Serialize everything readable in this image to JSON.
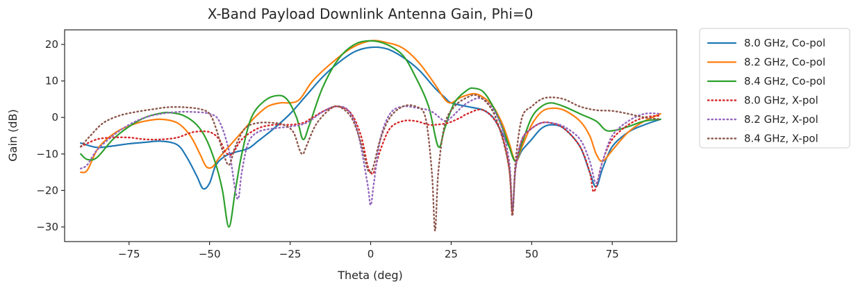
{
  "chart_data": {
    "type": "line",
    "title": "X-Band Payload Downlink Antenna Gain, Phi=0",
    "xlabel": "Theta (deg)",
    "ylabel": "Gain (dB)",
    "xlim": [
      -95,
      95
    ],
    "ylim": [
      -34,
      24
    ],
    "xticks": [
      -75,
      -50,
      -25,
      0,
      25,
      50,
      75
    ],
    "yticks": [
      -30,
      -20,
      -10,
      0,
      10,
      20
    ],
    "xtick_labels": [
      "−75",
      "−50",
      "−25",
      "0",
      "25",
      "50",
      "75"
    ],
    "ytick_labels": [
      "−30",
      "−20",
      "−10",
      "0",
      "10",
      "20"
    ],
    "grid": false,
    "legend_position": "outside-right",
    "series": [
      {
        "name": "8.0 GHz, Co-pol",
        "color": "#1f77b4",
        "dash": "solid",
        "points": [
          [
            -90,
            -7
          ],
          [
            -85,
            -8.2
          ],
          [
            -80,
            -7.8
          ],
          [
            -75,
            -7.2
          ],
          [
            -70,
            -6.8
          ],
          [
            -65,
            -6.5
          ],
          [
            -60,
            -7.5
          ],
          [
            -57,
            -11
          ],
          [
            -54,
            -16
          ],
          [
            -52,
            -19.5
          ],
          [
            -50,
            -18
          ],
          [
            -48,
            -13
          ],
          [
            -45,
            -10.5
          ],
          [
            -42,
            -9.5
          ],
          [
            -38,
            -8.5
          ],
          [
            -35,
            -6.5
          ],
          [
            -30,
            -3
          ],
          [
            -25,
            1
          ],
          [
            -20,
            6
          ],
          [
            -15,
            11
          ],
          [
            -10,
            15
          ],
          [
            -5,
            18
          ],
          [
            0,
            19.2
          ],
          [
            5,
            18.8
          ],
          [
            10,
            16.5
          ],
          [
            15,
            13
          ],
          [
            20,
            8
          ],
          [
            23,
            5.5
          ],
          [
            25,
            4
          ],
          [
            30,
            3
          ],
          [
            35,
            2
          ],
          [
            38,
            0
          ],
          [
            40,
            -3
          ],
          [
            43,
            -8
          ],
          [
            45,
            -12
          ],
          [
            47,
            -9
          ],
          [
            50,
            -6
          ],
          [
            53,
            -3
          ],
          [
            56,
            -2
          ],
          [
            60,
            -3
          ],
          [
            65,
            -8
          ],
          [
            68,
            -15
          ],
          [
            70,
            -19
          ],
          [
            72,
            -14
          ],
          [
            75,
            -8
          ],
          [
            80,
            -4
          ],
          [
            85,
            -2
          ],
          [
            90,
            -0.5
          ]
        ]
      },
      {
        "name": "8.2 GHz, Co-pol",
        "color": "#ff7f0e",
        "dash": "solid",
        "points": [
          [
            -90,
            -15
          ],
          [
            -88,
            -14.5
          ],
          [
            -85,
            -9
          ],
          [
            -82,
            -6
          ],
          [
            -78,
            -3.5
          ],
          [
            -74,
            -2
          ],
          [
            -70,
            -1
          ],
          [
            -65,
            -0.5
          ],
          [
            -60,
            -1.5
          ],
          [
            -56,
            -5
          ],
          [
            -53,
            -10
          ],
          [
            -51,
            -13.5
          ],
          [
            -49,
            -13.5
          ],
          [
            -47,
            -11
          ],
          [
            -44,
            -8
          ],
          [
            -40,
            -4
          ],
          [
            -36,
            0
          ],
          [
            -32,
            3
          ],
          [
            -28,
            4
          ],
          [
            -25,
            4
          ],
          [
            -22,
            5
          ],
          [
            -18,
            10
          ],
          [
            -12,
            15
          ],
          [
            -6,
            19
          ],
          [
            0,
            21
          ],
          [
            5,
            20.5
          ],
          [
            10,
            19
          ],
          [
            15,
            15
          ],
          [
            20,
            9
          ],
          [
            23,
            5
          ],
          [
            25,
            4
          ],
          [
            28,
            5.5
          ],
          [
            32,
            6.5
          ],
          [
            35,
            5.5
          ],
          [
            38,
            3
          ],
          [
            41,
            -2
          ],
          [
            43,
            -7
          ],
          [
            45,
            -12
          ],
          [
            47,
            -8
          ],
          [
            50,
            -2
          ],
          [
            53,
            1.5
          ],
          [
            56,
            2.5
          ],
          [
            60,
            2
          ],
          [
            65,
            -1
          ],
          [
            68,
            -5
          ],
          [
            70,
            -10
          ],
          [
            72,
            -12
          ],
          [
            75,
            -9
          ],
          [
            80,
            -4
          ],
          [
            85,
            -1
          ],
          [
            90,
            1
          ]
        ]
      },
      {
        "name": "8.4 GHz, Co-pol",
        "color": "#2ca02c",
        "dash": "solid",
        "points": [
          [
            -90,
            -10
          ],
          [
            -88,
            -11.5
          ],
          [
            -85,
            -11
          ],
          [
            -80,
            -6
          ],
          [
            -75,
            -2.5
          ],
          [
            -70,
            0
          ],
          [
            -65,
            1.2
          ],
          [
            -62,
            1.3
          ],
          [
            -58,
            0.5
          ],
          [
            -54,
            -2
          ],
          [
            -51,
            -6
          ],
          [
            -48,
            -13
          ],
          [
            -46,
            -20
          ],
          [
            -44,
            -30
          ],
          [
            -42,
            -20
          ],
          [
            -40,
            -10
          ],
          [
            -37,
            0
          ],
          [
            -33,
            4.5
          ],
          [
            -29,
            6
          ],
          [
            -26,
            5
          ],
          [
            -23,
            0
          ],
          [
            -21,
            -6
          ],
          [
            -19,
            -2
          ],
          [
            -15,
            8
          ],
          [
            -10,
            16
          ],
          [
            -5,
            20
          ],
          [
            0,
            21
          ],
          [
            5,
            20
          ],
          [
            10,
            17
          ],
          [
            14,
            11
          ],
          [
            18,
            3
          ],
          [
            21,
            -8
          ],
          [
            23,
            -3
          ],
          [
            26,
            4
          ],
          [
            30,
            7.5
          ],
          [
            32,
            8
          ],
          [
            35,
            7
          ],
          [
            38,
            3
          ],
          [
            41,
            -3
          ],
          [
            43,
            -8
          ],
          [
            45,
            -12
          ],
          [
            47,
            -7
          ],
          [
            50,
            0
          ],
          [
            53,
            3
          ],
          [
            56,
            4
          ],
          [
            60,
            3
          ],
          [
            65,
            1
          ],
          [
            70,
            -1
          ],
          [
            73,
            -3.5
          ],
          [
            76,
            -3.5
          ],
          [
            80,
            -2.5
          ],
          [
            85,
            -1
          ],
          [
            90,
            -0.5
          ]
        ]
      },
      {
        "name": "8.0 GHz, X-pol",
        "color": "#d62728",
        "dash": "dotted",
        "points": [
          [
            -90,
            -8
          ],
          [
            -85,
            -6
          ],
          [
            -80,
            -5.5
          ],
          [
            -75,
            -5.5
          ],
          [
            -70,
            -6
          ],
          [
            -65,
            -6
          ],
          [
            -60,
            -5.5
          ],
          [
            -55,
            -4
          ],
          [
            -50,
            -4
          ],
          [
            -47,
            -6
          ],
          [
            -45,
            -9.5
          ],
          [
            -43,
            -10
          ],
          [
            -40,
            -6
          ],
          [
            -35,
            -3
          ],
          [
            -30,
            -2
          ],
          [
            -25,
            -2
          ],
          [
            -21,
            -1.5
          ],
          [
            -18,
            0
          ],
          [
            -14,
            2
          ],
          [
            -10,
            3
          ],
          [
            -6,
            1
          ],
          [
            -3,
            -5
          ],
          [
            -1,
            -13
          ],
          [
            0,
            -15
          ],
          [
            1,
            -15
          ],
          [
            3,
            -9
          ],
          [
            6,
            -3
          ],
          [
            10,
            -1
          ],
          [
            14,
            -1
          ],
          [
            18,
            -2
          ],
          [
            20,
            -2
          ],
          [
            24,
            -1.5
          ],
          [
            28,
            0
          ],
          [
            30,
            1
          ],
          [
            35,
            2
          ],
          [
            40,
            -3
          ],
          [
            43,
            -14
          ],
          [
            44,
            -26
          ],
          [
            45,
            -14
          ],
          [
            47,
            -6
          ],
          [
            50,
            -3
          ],
          [
            53,
            -1.5
          ],
          [
            56,
            -1.5
          ],
          [
            60,
            -3
          ],
          [
            65,
            -8
          ],
          [
            68,
            -15
          ],
          [
            69,
            -20
          ],
          [
            70,
            -19
          ],
          [
            72,
            -12
          ],
          [
            75,
            -6
          ],
          [
            80,
            -2
          ],
          [
            85,
            0
          ],
          [
            90,
            0.5
          ]
        ]
      },
      {
        "name": "8.2 GHz, X-pol",
        "color": "#9467bd",
        "dash": "dotted",
        "points": [
          [
            -90,
            -14
          ],
          [
            -88,
            -13
          ],
          [
            -85,
            -9
          ],
          [
            -80,
            -5
          ],
          [
            -75,
            -2
          ],
          [
            -70,
            0
          ],
          [
            -65,
            1
          ],
          [
            -60,
            1.5
          ],
          [
            -55,
            1.5
          ],
          [
            -50,
            1
          ],
          [
            -47,
            -1
          ],
          [
            -44,
            -9
          ],
          [
            -42,
            -20
          ],
          [
            -41,
            -22
          ],
          [
            -40,
            -15
          ],
          [
            -38,
            -7
          ],
          [
            -35,
            -4
          ],
          [
            -30,
            -3
          ],
          [
            -25,
            -2.5
          ],
          [
            -20,
            -1.5
          ],
          [
            -15,
            1.5
          ],
          [
            -11,
            3
          ],
          [
            -7,
            2
          ],
          [
            -4,
            -4
          ],
          [
            -1,
            -18
          ],
          [
            0,
            -24
          ],
          [
            1,
            -18
          ],
          [
            3,
            -6
          ],
          [
            6,
            1
          ],
          [
            10,
            3
          ],
          [
            15,
            2.5
          ],
          [
            18,
            2
          ],
          [
            20,
            1
          ],
          [
            23,
            -1
          ],
          [
            25,
            0
          ],
          [
            30,
            4
          ],
          [
            35,
            5
          ],
          [
            40,
            -1
          ],
          [
            43,
            -12
          ],
          [
            44,
            -25
          ],
          [
            45,
            -14
          ],
          [
            47,
            -6
          ],
          [
            50,
            -3
          ],
          [
            53,
            -1.5
          ],
          [
            56,
            -1.5
          ],
          [
            60,
            -2.5
          ],
          [
            65,
            -6
          ],
          [
            68,
            -12
          ],
          [
            70,
            -18
          ],
          [
            72,
            -12
          ],
          [
            75,
            -5
          ],
          [
            80,
            -1
          ],
          [
            85,
            1
          ],
          [
            90,
            1
          ]
        ]
      },
      {
        "name": "8.4 GHz, X-pol",
        "color": "#8c564b",
        "dash": "dotted",
        "points": [
          [
            -90,
            -8
          ],
          [
            -87,
            -5
          ],
          [
            -83,
            -1.5
          ],
          [
            -78,
            0.5
          ],
          [
            -73,
            1.5
          ],
          [
            -68,
            2.2
          ],
          [
            -63,
            2.8
          ],
          [
            -58,
            2.8
          ],
          [
            -53,
            2.3
          ],
          [
            -50,
            1
          ],
          [
            -48,
            -3
          ],
          [
            -46,
            -9
          ],
          [
            -44,
            -13
          ],
          [
            -42,
            -8
          ],
          [
            -39,
            -3
          ],
          [
            -35,
            -1.5
          ],
          [
            -30,
            -1.5
          ],
          [
            -27,
            -2
          ],
          [
            -24,
            -4
          ],
          [
            -22,
            -9
          ],
          [
            -21,
            -10
          ],
          [
            -20,
            -8
          ],
          [
            -17,
            -2
          ],
          [
            -13,
            2
          ],
          [
            -10,
            3
          ],
          [
            -6,
            0
          ],
          [
            -3,
            -7
          ],
          [
            -1,
            -14
          ],
          [
            0,
            -15
          ],
          [
            1,
            -13
          ],
          [
            3,
            -6
          ],
          [
            6,
            0
          ],
          [
            10,
            3
          ],
          [
            14,
            3
          ],
          [
            17,
            0
          ],
          [
            19,
            -15
          ],
          [
            20,
            -31
          ],
          [
            21,
            -15
          ],
          [
            23,
            -2
          ],
          [
            26,
            3
          ],
          [
            30,
            5.5
          ],
          [
            33,
            6
          ],
          [
            37,
            3
          ],
          [
            40,
            -3
          ],
          [
            43,
            -14
          ],
          [
            44,
            -27
          ],
          [
            45,
            -12
          ],
          [
            47,
            0
          ],
          [
            50,
            3
          ],
          [
            53,
            5
          ],
          [
            56,
            5.5
          ],
          [
            60,
            5
          ],
          [
            65,
            3
          ],
          [
            70,
            2
          ],
          [
            75,
            1.8
          ],
          [
            80,
            1
          ],
          [
            85,
            0
          ],
          [
            90,
            -0.5
          ]
        ]
      }
    ]
  }
}
